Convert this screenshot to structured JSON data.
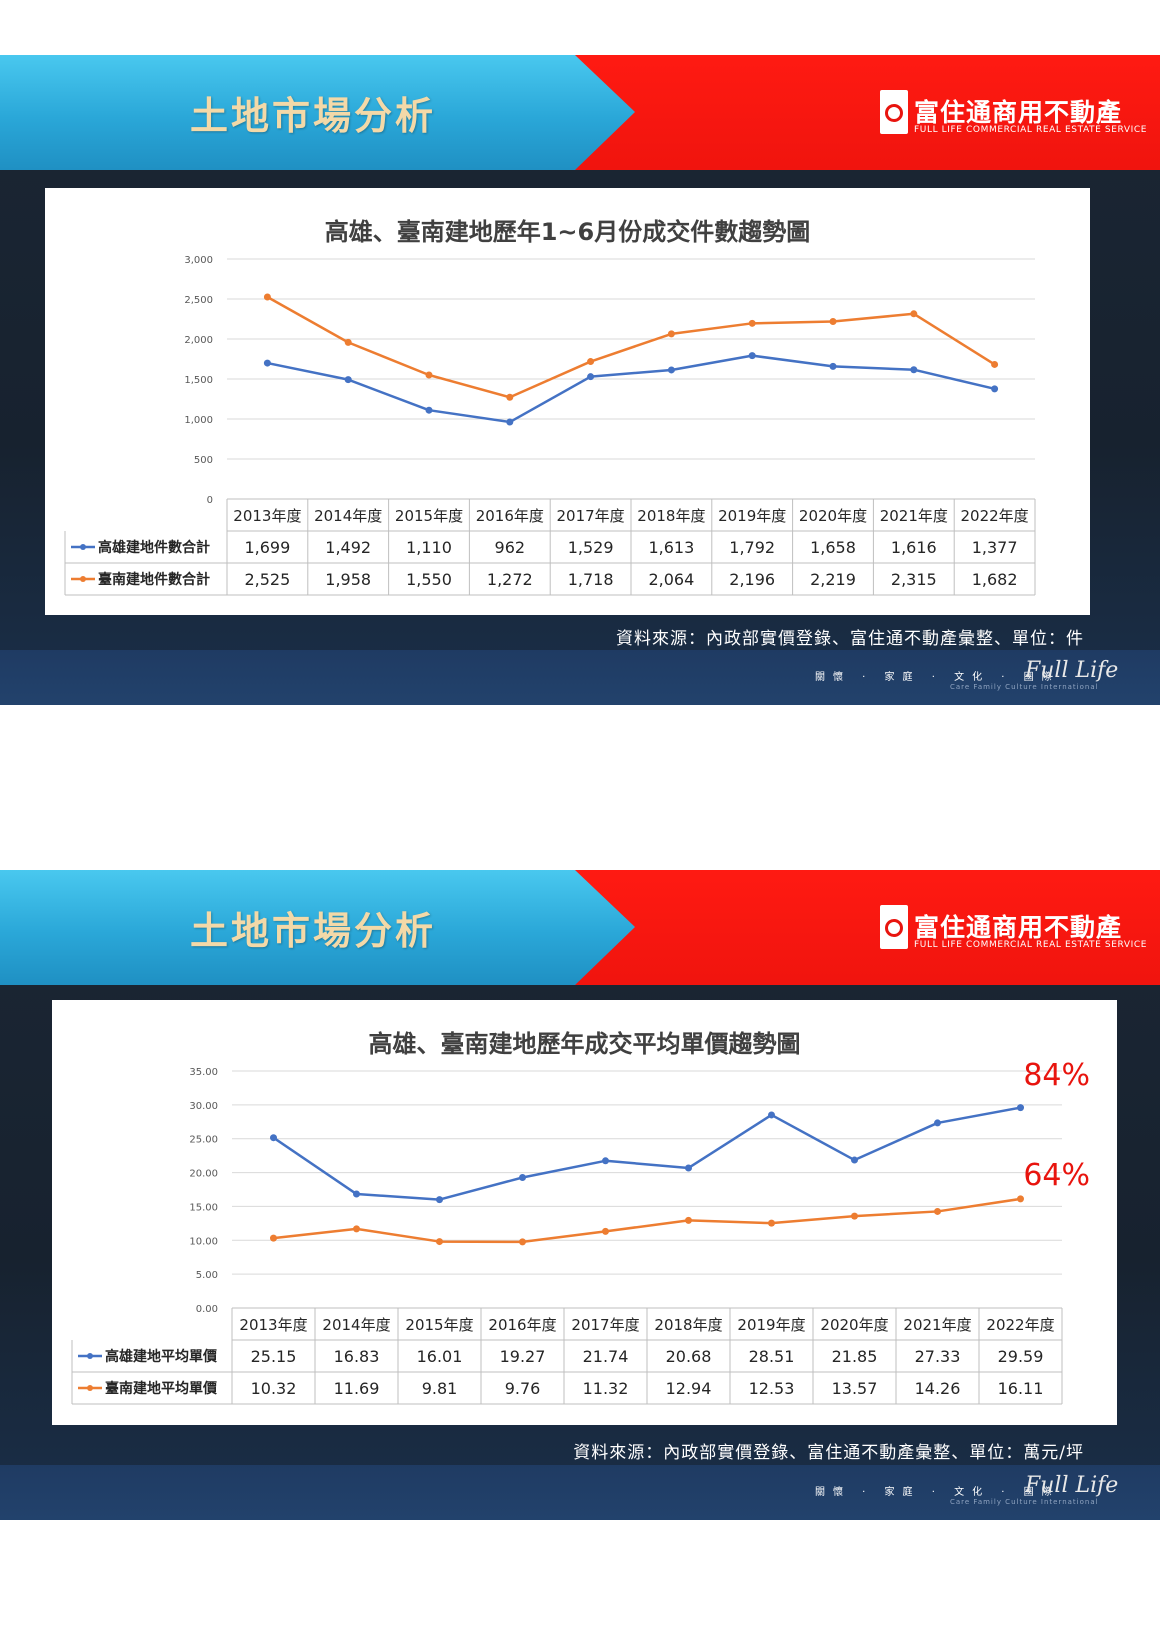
{
  "slides": [
    {
      "banner_title": "土地市場分析",
      "logo_name": "富住通商用不動產",
      "logo_sub": "FULL LIFE COMMERCIAL REAL ESTATE SERVICE",
      "source": "資料來源：內政部實價登錄、富住通不動產彙整、單位：件",
      "slogan": "關懷 · 家庭 · 文化 · 國際",
      "brand": "Full Life",
      "tagline": "Care Family Culture International"
    },
    {
      "banner_title": "土地市場分析",
      "logo_name": "富住通商用不動產",
      "logo_sub": "FULL LIFE COMMERCIAL REAL ESTATE SERVICE",
      "source": "資料來源：內政部實價登錄、富住通不動產彙整、單位：萬元/坪",
      "slogan": "關懷 · 家庭 · 文化 · 國際",
      "brand": "Full Life",
      "tagline": "Care Family Culture International"
    }
  ],
  "chart_data": [
    {
      "type": "line",
      "title": "高雄、臺南建地歷年1~6月份成交件數趨勢圖",
      "categories": [
        "2013年度",
        "2014年度",
        "2015年度",
        "2016年度",
        "2017年度",
        "2018年度",
        "2019年度",
        "2020年度",
        "2021年度",
        "2022年度"
      ],
      "ylim": [
        0,
        3000
      ],
      "yticks": [
        "0",
        "500",
        "1,000",
        "1,500",
        "2,000",
        "2,500",
        "3,000"
      ],
      "ytick_values": [
        0,
        500,
        1000,
        1500,
        2000,
        2500,
        3000
      ],
      "grid": true,
      "legend": "data-table",
      "series": [
        {
          "name": "高雄建地件數合計",
          "color": "#4472c4",
          "values": [
            1699,
            1492,
            1110,
            962,
            1529,
            1613,
            1792,
            1658,
            1616,
            1377
          ],
          "labels": [
            "1,699",
            "1,492",
            "1,110",
            "962",
            "1,529",
            "1,613",
            "1,792",
            "1,658",
            "1,616",
            "1,377"
          ]
        },
        {
          "name": "臺南建地件數合計",
          "color": "#ed7d31",
          "values": [
            2525,
            1958,
            1550,
            1272,
            1718,
            2064,
            2196,
            2219,
            2315,
            1682
          ],
          "labels": [
            "2,525",
            "1,958",
            "1,550",
            "1,272",
            "1,718",
            "2,064",
            "2,196",
            "2,219",
            "2,315",
            "1,682"
          ]
        }
      ],
      "annotations": []
    },
    {
      "type": "line",
      "title": "高雄、臺南建地歷年成交平均單價趨勢圖",
      "categories": [
        "2013年度",
        "2014年度",
        "2015年度",
        "2016年度",
        "2017年度",
        "2018年度",
        "2019年度",
        "2020年度",
        "2021年度",
        "2022年度"
      ],
      "ylim": [
        0,
        35
      ],
      "yticks": [
        "0.00",
        "5.00",
        "10.00",
        "15.00",
        "20.00",
        "25.00",
        "30.00",
        "35.00"
      ],
      "ytick_values": [
        0,
        5,
        10,
        15,
        20,
        25,
        30,
        35
      ],
      "grid": true,
      "legend": "data-table",
      "series": [
        {
          "name": "高雄建地平均單價",
          "color": "#4472c4",
          "values": [
            25.15,
            16.83,
            16.01,
            19.27,
            21.74,
            20.68,
            28.51,
            21.85,
            27.33,
            29.59
          ],
          "labels": [
            "25.15",
            "16.83",
            "16.01",
            "19.27",
            "21.74",
            "20.68",
            "28.51",
            "21.85",
            "27.33",
            "29.59"
          ]
        },
        {
          "name": "臺南建地平均單價",
          "color": "#ed7d31",
          "values": [
            10.32,
            11.69,
            9.81,
            9.76,
            11.32,
            12.94,
            12.53,
            13.57,
            14.26,
            16.11
          ],
          "labels": [
            "10.32",
            "11.69",
            "9.81",
            "9.76",
            "11.32",
            "12.94",
            "12.53",
            "13.57",
            "14.26",
            "16.11"
          ]
        }
      ],
      "annotations": [
        {
          "text": "84%",
          "color": "#e8140e"
        },
        {
          "text": "64%",
          "color": "#e8140e"
        }
      ]
    }
  ]
}
